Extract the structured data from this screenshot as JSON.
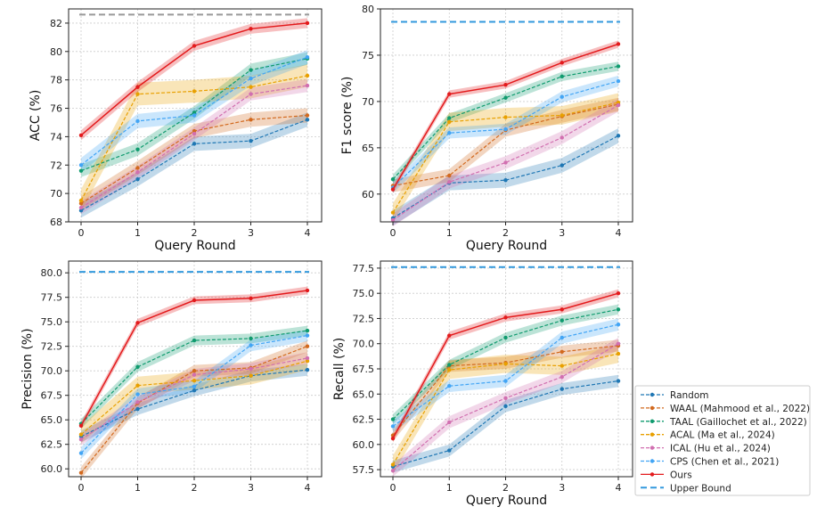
{
  "colors": {
    "random": "#1f77b4",
    "waal": "#d2691e",
    "taal": "#0f9b6e",
    "acal": "#e8a000",
    "ical": "#d16fb0",
    "cps": "#42a5f5",
    "ours": "#e31a1c",
    "upper": "#3399dd",
    "grid": "#cccccc"
  },
  "legend": {
    "items": [
      {
        "key": "random",
        "label": "Random",
        "style": "dashed"
      },
      {
        "key": "waal",
        "label": "WAAL (Mahmood et al., 2022)",
        "style": "dashed"
      },
      {
        "key": "taal",
        "label": "TAAL (Gaillochet et al., 2022)",
        "style": "dashed"
      },
      {
        "key": "acal",
        "label": "ACAL (Ma et al., 2024)",
        "style": "dashed"
      },
      {
        "key": "ical",
        "label": "ICAL (Hu et al., 2024)",
        "style": "dashed"
      },
      {
        "key": "cps",
        "label": "CPS (Chen et al., 2021)",
        "style": "dashed"
      },
      {
        "key": "ours",
        "label": "Ours",
        "style": "solid"
      },
      {
        "key": "upper",
        "label": "Upper Bound",
        "style": "longdash"
      }
    ]
  },
  "chart_data": [
    {
      "type": "line",
      "xlabel": "Query Round",
      "ylabel": "ACC (%)",
      "x": [
        0,
        1,
        2,
        3,
        4
      ],
      "ylim": [
        68,
        83
      ],
      "yticks": [
        68,
        70,
        72,
        74,
        76,
        78,
        80,
        82
      ],
      "upper_bound": 82.6,
      "series": [
        {
          "key": "random",
          "values": [
            68.8,
            71.0,
            73.5,
            73.7,
            75.2
          ],
          "band": 0.5
        },
        {
          "key": "waal",
          "values": [
            69.3,
            71.8,
            74.4,
            75.2,
            75.5
          ],
          "band": 0.5
        },
        {
          "key": "taal",
          "values": [
            71.6,
            73.1,
            75.7,
            78.7,
            79.5
          ],
          "band": 0.45
        },
        {
          "key": "acal",
          "values": [
            69.5,
            77.0,
            77.2,
            77.5,
            78.3
          ],
          "band": 0.8
        },
        {
          "key": "ical",
          "values": [
            69.0,
            71.5,
            74.2,
            77.0,
            77.6
          ],
          "band": 0.45
        },
        {
          "key": "cps",
          "values": [
            72.0,
            75.1,
            75.5,
            78.1,
            79.6
          ],
          "band": 0.5
        },
        {
          "key": "ours",
          "values": [
            74.1,
            77.5,
            80.4,
            81.6,
            82.0
          ],
          "band": 0.35
        }
      ]
    },
    {
      "type": "line",
      "xlabel": "Query Round",
      "ylabel": "F1 score (%)",
      "x": [
        0,
        1,
        2,
        3,
        4
      ],
      "ylim": [
        57,
        80
      ],
      "yticks": [
        60,
        65,
        70,
        75,
        80
      ],
      "upper_bound": 78.6,
      "series": [
        {
          "key": "random",
          "values": [
            57.4,
            61.2,
            61.5,
            63.1,
            66.3
          ],
          "band": 0.8
        },
        {
          "key": "waal",
          "values": [
            60.9,
            62.0,
            66.9,
            68.4,
            69.7
          ],
          "band": 0.7
        },
        {
          "key": "taal",
          "values": [
            61.6,
            68.2,
            70.4,
            72.7,
            73.8
          ],
          "band": 0.5
        },
        {
          "key": "acal",
          "values": [
            58.0,
            67.8,
            68.3,
            68.5,
            69.9
          ],
          "band": 1.0
        },
        {
          "key": "ical",
          "values": [
            57.2,
            61.3,
            63.4,
            66.1,
            69.6
          ],
          "band": 0.7
        },
        {
          "key": "cps",
          "values": [
            60.7,
            66.6,
            67.0,
            70.5,
            72.2
          ],
          "band": 0.6
        },
        {
          "key": "ours",
          "values": [
            60.5,
            70.8,
            71.8,
            74.2,
            76.2
          ],
          "band": 0.4
        }
      ]
    },
    {
      "type": "line",
      "xlabel": "",
      "ylabel": "Precision (%)",
      "x": [
        0,
        1,
        2,
        3,
        4
      ],
      "ylim": [
        59.2,
        81.2
      ],
      "yticks": [
        60.0,
        62.5,
        65.0,
        67.5,
        70.0,
        72.5,
        75.0,
        77.5,
        80.0
      ],
      "upper_bound": 80.1,
      "series": [
        {
          "key": "random",
          "values": [
            63.3,
            66.1,
            68.0,
            69.5,
            70.1
          ],
          "band": 0.6
        },
        {
          "key": "waal",
          "values": [
            59.6,
            66.7,
            70.0,
            70.3,
            72.5
          ],
          "band": 0.6
        },
        {
          "key": "taal",
          "values": [
            64.6,
            70.4,
            73.1,
            73.3,
            74.1
          ],
          "band": 0.5
        },
        {
          "key": "acal",
          "values": [
            63.5,
            68.5,
            69.0,
            69.5,
            71.0
          ],
          "band": 0.9
        },
        {
          "key": "ical",
          "values": [
            63.0,
            66.8,
            69.6,
            70.2,
            71.3
          ],
          "band": 0.6
        },
        {
          "key": "cps",
          "values": [
            61.6,
            67.6,
            68.4,
            72.6,
            73.6
          ],
          "band": 0.6
        },
        {
          "key": "ours",
          "values": [
            64.4,
            74.9,
            77.2,
            77.4,
            78.2
          ],
          "band": 0.4
        }
      ]
    },
    {
      "type": "line",
      "xlabel": "Query Round",
      "ylabel": "Recall (%)",
      "x": [
        0,
        1,
        2,
        3,
        4
      ],
      "ylim": [
        56.8,
        78.2
      ],
      "yticks": [
        57.5,
        60.0,
        62.5,
        65.0,
        67.5,
        70.0,
        72.5,
        75.0,
        77.5
      ],
      "upper_bound": 77.6,
      "series": [
        {
          "key": "random",
          "values": [
            57.8,
            59.4,
            63.8,
            65.5,
            66.3
          ],
          "band": 0.6
        },
        {
          "key": "waal",
          "values": [
            60.9,
            67.8,
            68.1,
            69.2,
            69.8
          ],
          "band": 0.6
        },
        {
          "key": "taal",
          "values": [
            62.5,
            67.9,
            70.6,
            72.3,
            73.4
          ],
          "band": 0.5
        },
        {
          "key": "acal",
          "values": [
            58.0,
            67.4,
            68.0,
            67.8,
            69.0
          ],
          "band": 0.9
        },
        {
          "key": "ical",
          "values": [
            57.4,
            62.2,
            64.6,
            66.7,
            70.0
          ],
          "band": 0.6
        },
        {
          "key": "cps",
          "values": [
            61.8,
            65.8,
            66.3,
            70.6,
            71.9
          ],
          "band": 0.6
        },
        {
          "key": "ours",
          "values": [
            60.6,
            70.8,
            72.6,
            73.4,
            75.0
          ],
          "band": 0.4
        }
      ]
    }
  ]
}
